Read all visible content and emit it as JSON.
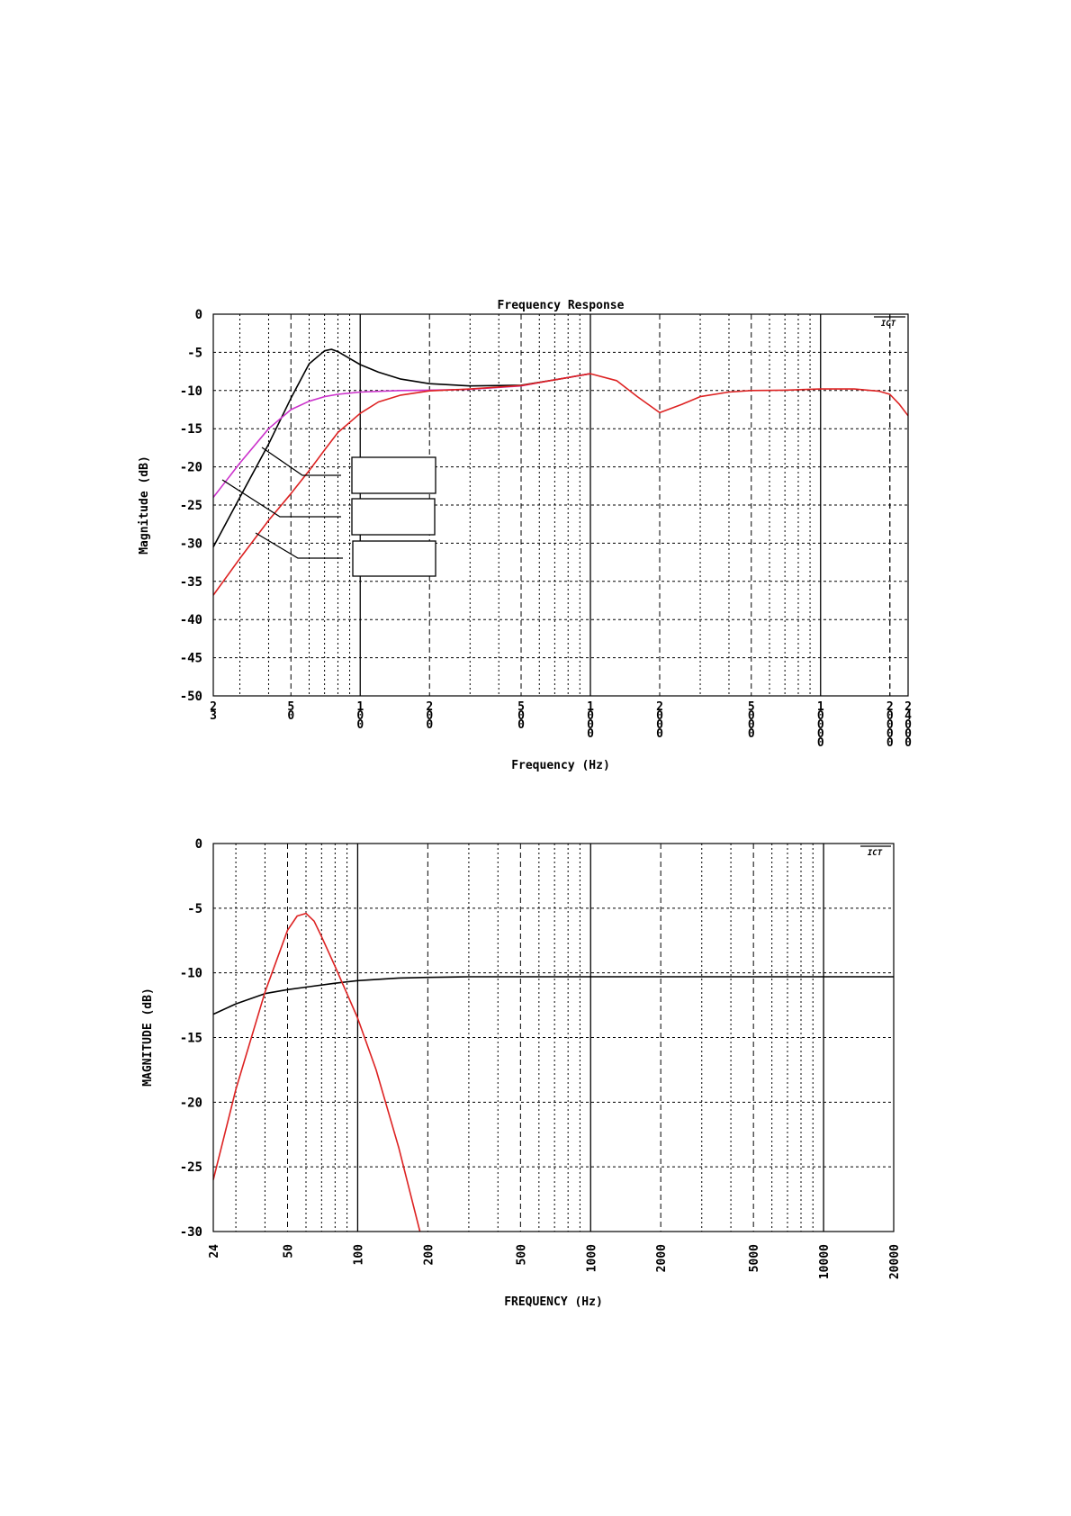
{
  "chart_data": [
    {
      "type": "line",
      "title": "Frequency Response",
      "xlabel": "Frequency (Hz)",
      "ylabel": "Magnitude (dB)",
      "x_scale": "log",
      "xlim": [
        23,
        24000
      ],
      "ylim": [
        -50,
        0
      ],
      "grid": true,
      "x_ticks": [
        "23",
        "50",
        "100",
        "200",
        "500",
        "1000",
        "2000",
        "5000",
        "10000",
        "20000",
        "24000"
      ],
      "y_ticks": [
        "0",
        "-5",
        "-10",
        "-15",
        "-20",
        "-25",
        "-30",
        "-35",
        "-40",
        "-45",
        "-50"
      ],
      "series": [
        {
          "color": "#000000",
          "x": [
            23,
            30,
            40,
            50,
            60,
            70,
            75,
            80,
            90,
            100,
            120,
            150,
            200,
            300,
            500,
            700,
            1000
          ],
          "values": [
            -30.5,
            -24,
            -17,
            -11,
            -6.5,
            -4.8,
            -4.6,
            -4.9,
            -5.8,
            -6.6,
            -7.6,
            -8.5,
            -9.1,
            -9.4,
            -9.3,
            -8.6,
            -7.8
          ]
        },
        {
          "color": "#cc33cc",
          "x": [
            23,
            30,
            40,
            50,
            60,
            70,
            80,
            100,
            150,
            200,
            300,
            500,
            700,
            1000
          ],
          "values": [
            -24,
            -19.5,
            -15,
            -12.5,
            -11.4,
            -10.8,
            -10.5,
            -10.2,
            -10.0,
            -9.95,
            -9.85,
            -9.4,
            -8.6,
            -7.8
          ]
        },
        {
          "color": "#dd2222",
          "x": [
            23,
            30,
            40,
            50,
            60,
            70,
            80,
            100,
            120,
            150,
            200,
            300,
            500,
            700,
            1000,
            1300,
            1600,
            2000,
            2500,
            3000,
            4000,
            5000,
            7000,
            10000,
            14000,
            18000,
            20000,
            22000,
            24000
          ],
          "values": [
            -36.8,
            -32,
            -27,
            -23.5,
            -20.5,
            -17.8,
            -15.5,
            -13,
            -11.5,
            -10.6,
            -10.05,
            -9.8,
            -9.35,
            -8.6,
            -7.8,
            -8.7,
            -10.8,
            -12.9,
            -11.8,
            -10.8,
            -10.2,
            -10.0,
            -9.95,
            -9.8,
            -9.8,
            -10.1,
            -10.5,
            -11.8,
            -13.3
          ]
        }
      ]
    },
    {
      "type": "line",
      "title": "",
      "xlabel": "FREQUENCY (Hz)",
      "ylabel": "MAGNITUDE (dB)",
      "x_scale": "log",
      "xlim": [
        24,
        20000
      ],
      "ylim": [
        -30,
        0
      ],
      "grid": true,
      "x_ticks": [
        "24",
        "50",
        "100",
        "200",
        "500",
        "1000",
        "2000",
        "5000",
        "10000",
        "20000"
      ],
      "y_ticks": [
        "0",
        "-5",
        "-10",
        "-15",
        "-20",
        "-25",
        "-30"
      ],
      "series": [
        {
          "color": "#000000",
          "x": [
            24,
            30,
            40,
            50,
            60,
            80,
            100,
            150,
            200,
            300,
            500,
            1000,
            5000,
            10000,
            20000
          ],
          "values": [
            -13.2,
            -12.4,
            -11.6,
            -11.3,
            -11.1,
            -10.8,
            -10.6,
            -10.4,
            -10.35,
            -10.3,
            -10.3,
            -10.3,
            -10.3,
            -10.3,
            -10.3
          ]
        },
        {
          "color": "#dd2222",
          "x": [
            24,
            30,
            40,
            50,
            55,
            60,
            65,
            70,
            80,
            100,
            120,
            150,
            185
          ],
          "values": [
            -26,
            -19,
            -11.5,
            -6.7,
            -5.6,
            -5.4,
            -6.0,
            -7.2,
            -9.5,
            -13.5,
            -17.5,
            -23.5,
            -30
          ]
        }
      ]
    }
  ]
}
